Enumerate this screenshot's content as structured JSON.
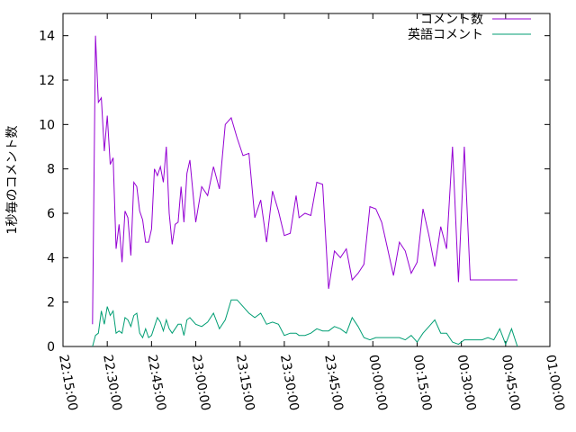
{
  "chart_data": {
    "type": "line",
    "ylabel": "1秒毎のコメント数",
    "xlim": [
      "22:15:00",
      "01:00:00"
    ],
    "ylim": [
      0,
      15
    ],
    "yticks": [
      0,
      2,
      4,
      6,
      8,
      10,
      12,
      14
    ],
    "xticks": [
      "22:15:00",
      "22:30:00",
      "22:45:00",
      "23:00:00",
      "23:15:00",
      "23:30:00",
      "23:45:00",
      "00:00:00",
      "00:15:00",
      "00:30:00",
      "00:45:00",
      "01:00:00"
    ],
    "grid": false,
    "legend_position": "top-right",
    "series": [
      {
        "name": "コメント数",
        "color": "#9400d3",
        "x": [
          "22:25:00",
          "22:26:00",
          "22:27:00",
          "22:28:00",
          "22:29:00",
          "22:30:00",
          "22:31:00",
          "22:32:00",
          "22:33:00",
          "22:34:00",
          "22:35:00",
          "22:36:00",
          "22:37:00",
          "22:38:00",
          "22:39:00",
          "22:40:00",
          "22:41:00",
          "22:42:00",
          "22:43:00",
          "22:44:00",
          "22:45:00",
          "22:46:00",
          "22:47:00",
          "22:48:00",
          "22:49:00",
          "22:50:00",
          "22:51:00",
          "22:52:00",
          "22:53:00",
          "22:54:00",
          "22:55:00",
          "22:56:00",
          "22:57:00",
          "22:58:00",
          "23:00:00",
          "23:02:00",
          "23:04:00",
          "23:06:00",
          "23:08:00",
          "23:10:00",
          "23:12:00",
          "23:14:00",
          "23:16:00",
          "23:18:00",
          "23:20:00",
          "23:22:00",
          "23:24:00",
          "23:26:00",
          "23:28:00",
          "23:30:00",
          "23:32:00",
          "23:34:00",
          "23:35:00",
          "23:37:00",
          "23:39:00",
          "23:41:00",
          "23:43:00",
          "23:45:00",
          "23:47:00",
          "23:49:00",
          "23:51:00",
          "23:53:00",
          "23:55:00",
          "23:57:00",
          "23:59:00",
          "00:01:00",
          "00:03:00",
          "00:05:00",
          "00:07:00",
          "00:09:00",
          "00:11:00",
          "00:13:00",
          "00:15:00",
          "00:17:00",
          "00:19:00",
          "00:21:00",
          "00:23:00",
          "00:25:00",
          "00:27:00",
          "00:29:00",
          "00:31:00",
          "00:33:00",
          "00:35:00",
          "00:37:00",
          "00:39:00",
          "00:41:00",
          "00:43:00",
          "00:45:00",
          "00:47:00",
          "00:49:00"
        ],
        "values": [
          1.0,
          14.0,
          11.0,
          11.2,
          8.8,
          10.4,
          8.2,
          8.5,
          4.4,
          5.5,
          3.8,
          6.1,
          5.8,
          4.1,
          7.4,
          7.2,
          6.1,
          5.7,
          4.7,
          4.7,
          5.3,
          8.0,
          7.7,
          8.1,
          7.4,
          9.0,
          6.0,
          4.6,
          5.5,
          5.6,
          7.2,
          5.6,
          7.8,
          8.4,
          5.6,
          7.2,
          6.8,
          8.1,
          7.1,
          10.0,
          10.3,
          9.4,
          8.6,
          8.7,
          5.8,
          6.6,
          4.7,
          7.0,
          6.1,
          5.0,
          5.1,
          6.8,
          5.8,
          6.0,
          5.9,
          7.4,
          7.3,
          2.6,
          4.3,
          4.0,
          4.4,
          3.0,
          3.3,
          3.7,
          6.3,
          6.2,
          5.6,
          4.4,
          3.2,
          4.7,
          4.3,
          3.3,
          3.8,
          6.2,
          5.0,
          3.6,
          5.4,
          4.4,
          9.0,
          2.9,
          9.0,
          3.0,
          3.0,
          3.0,
          3.0,
          3.0,
          3.0,
          3.0,
          3.0,
          3.0
        ],
        "note": ""
      },
      {
        "name": "英語コメント",
        "color": "#009e73",
        "x": [
          "22:25:00",
          "22:26:00",
          "22:27:00",
          "22:28:00",
          "22:29:00",
          "22:30:00",
          "22:31:00",
          "22:32:00",
          "22:33:00",
          "22:34:00",
          "22:35:00",
          "22:36:00",
          "22:37:00",
          "22:38:00",
          "22:39:00",
          "22:40:00",
          "22:41:00",
          "22:42:00",
          "22:43:00",
          "22:44:00",
          "22:45:00",
          "22:46:00",
          "22:47:00",
          "22:48:00",
          "22:49:00",
          "22:50:00",
          "22:51:00",
          "22:52:00",
          "22:53:00",
          "22:54:00",
          "22:55:00",
          "22:56:00",
          "22:57:00",
          "22:58:00",
          "23:00:00",
          "23:02:00",
          "23:04:00",
          "23:06:00",
          "23:08:00",
          "23:10:00",
          "23:12:00",
          "23:14:00",
          "23:16:00",
          "23:18:00",
          "23:20:00",
          "23:22:00",
          "23:24:00",
          "23:26:00",
          "23:28:00",
          "23:30:00",
          "23:32:00",
          "23:34:00",
          "23:35:00",
          "23:37:00",
          "23:39:00",
          "23:41:00",
          "23:43:00",
          "23:45:00",
          "23:47:00",
          "23:49:00",
          "23:51:00",
          "23:53:00",
          "23:55:00",
          "23:57:00",
          "23:59:00",
          "00:01:00",
          "00:03:00",
          "00:05:00",
          "00:07:00",
          "00:09:00",
          "00:11:00",
          "00:13:00",
          "00:15:00",
          "00:17:00",
          "00:19:00",
          "00:21:00",
          "00:23:00",
          "00:25:00",
          "00:27:00",
          "00:29:00",
          "00:31:00",
          "00:33:00",
          "00:35:00",
          "00:37:00",
          "00:39:00",
          "00:41:00",
          "00:43:00",
          "00:45:00",
          "00:47:00",
          "00:49:00"
        ],
        "values": [
          0.0,
          0.5,
          0.6,
          1.6,
          1.0,
          1.8,
          1.4,
          1.6,
          0.6,
          0.7,
          0.6,
          1.3,
          1.2,
          0.9,
          1.4,
          1.5,
          0.6,
          0.4,
          0.8,
          0.4,
          0.5,
          0.9,
          1.3,
          1.1,
          0.7,
          1.2,
          0.8,
          0.6,
          0.8,
          1.0,
          1.0,
          0.5,
          1.2,
          1.3,
          1.0,
          0.9,
          1.1,
          1.5,
          0.8,
          1.2,
          2.1,
          2.1,
          1.8,
          1.5,
          1.3,
          1.5,
          1.0,
          1.1,
          1.0,
          0.5,
          0.6,
          0.6,
          0.5,
          0.5,
          0.6,
          0.8,
          0.7,
          0.7,
          0.9,
          0.8,
          0.6,
          1.3,
          0.9,
          0.4,
          0.3,
          0.4,
          0.4,
          0.4,
          0.4,
          0.4,
          0.3,
          0.5,
          0.2,
          0.6,
          0.9,
          1.2,
          0.6,
          0.6,
          0.2,
          0.1,
          0.3,
          0.3,
          0.3,
          0.3,
          0.4,
          0.3,
          0.8,
          0.1,
          0.8,
          0.0
        ]
      }
    ]
  }
}
